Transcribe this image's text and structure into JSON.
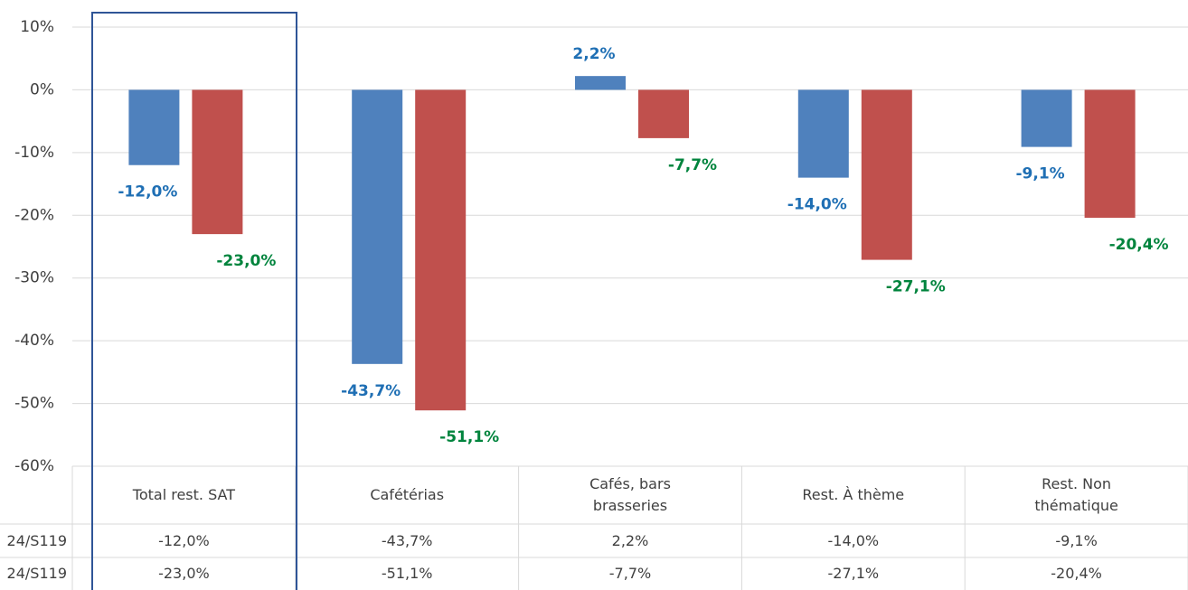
{
  "chart_data": {
    "type": "bar",
    "categories": [
      "Total rest. SAT",
      "Cafétérias",
      "Cafés, bars\nbrasseries",
      "Rest. À thème",
      "Rest. Non\nthématique"
    ],
    "series": [
      {
        "name": "24/S119",
        "color": "#4f81bd",
        "label_color": "#1f6fb4",
        "values": [
          -12.0,
          -43.7,
          2.2,
          -14.0,
          -9.1
        ],
        "value_labels": [
          "-12,0%",
          "-43,7%",
          "2,2%",
          "-14,0%",
          "-9,1%"
        ]
      },
      {
        "name": "24/S119",
        "color": "#c0504d",
        "label_color": "#00843d",
        "values": [
          -23.0,
          -51.1,
          -7.7,
          -27.1,
          -20.4
        ],
        "value_labels": [
          "-23,0%",
          "-51,1%",
          "-7,7%",
          "-27,1%",
          "-20,4%"
        ]
      }
    ],
    "ylim": [
      -60,
      10
    ],
    "yticks": [
      {
        "value": -60,
        "label": "-60%"
      },
      {
        "value": -50,
        "label": "-50%"
      },
      {
        "value": -40,
        "label": "-40%"
      },
      {
        "value": -30,
        "label": "-30%"
      },
      {
        "value": -20,
        "label": "-20%"
      },
      {
        "value": -10,
        "label": "-10%"
      },
      {
        "value": 0,
        "label": "0%"
      },
      {
        "value": 10,
        "label": "10%"
      }
    ],
    "grid": true,
    "data_table": true
  }
}
